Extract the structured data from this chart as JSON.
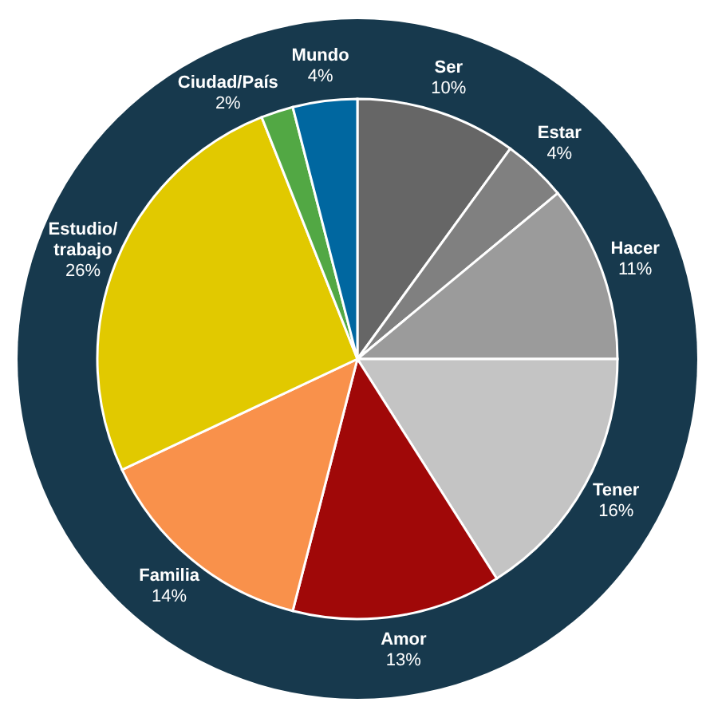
{
  "chart_data": {
    "type": "pie",
    "categories": [
      "Ser",
      "Estar",
      "Hacer",
      "Tener",
      "Amor",
      "Familia",
      "Estudio/trabajo",
      "Ciudad/País",
      "Mundo"
    ],
    "values": [
      10,
      4,
      11,
      16,
      13,
      14,
      26,
      2,
      4
    ],
    "value_labels": [
      "10%",
      "4%",
      "11%",
      "16%",
      "13%",
      "14%",
      "26%",
      "2%",
      "4%"
    ],
    "colors": [
      "#666666",
      "#808080",
      "#9b9b9b",
      "#c4c4c4",
      "#a00808",
      "#f9914b",
      "#e1c900",
      "#52a844",
      "#0067a0"
    ]
  }
}
